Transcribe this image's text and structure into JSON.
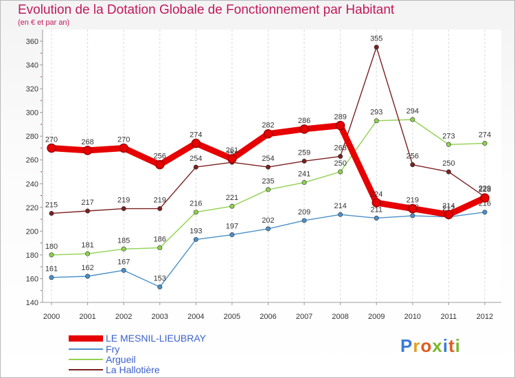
{
  "chart_data": {
    "type": "line",
    "title": "Evolution de la Dotation Globale de Fonctionnement par Habitant",
    "subtitle": "(en € et par an)",
    "x": [
      "2000",
      "2001",
      "2002",
      "2003",
      "2004",
      "2005",
      "2006",
      "2007",
      "2008",
      "2009",
      "2010",
      "2011",
      "2012"
    ],
    "ylim": [
      140,
      360
    ],
    "yticks": [
      140,
      160,
      180,
      200,
      220,
      240,
      260,
      280,
      300,
      320,
      340,
      360
    ],
    "series": [
      {
        "name": "LE MESNIL-LIEUBRAY",
        "color": "#e60000",
        "values": [
          270,
          268,
          270,
          256,
          274,
          261,
          282,
          286,
          289,
          224,
          219,
          214,
          228
        ]
      },
      {
        "name": "Fry",
        "color": "#4a90c8",
        "values": [
          161,
          162,
          167,
          153,
          193,
          197,
          202,
          209,
          214,
          211,
          213,
          212,
          216
        ]
      },
      {
        "name": "Argueil",
        "color": "#8fd14f",
        "values": [
          180,
          181,
          185,
          186,
          216,
          221,
          235,
          241,
          250,
          293,
          294,
          273,
          274
        ]
      },
      {
        "name": "La Hallotière",
        "color": "#7a2020",
        "values": [
          215,
          217,
          219,
          219,
          254,
          258,
          254,
          259,
          263,
          355,
          256,
          250,
          229
        ]
      }
    ]
  },
  "logo": {
    "text": "Proxiti"
  }
}
